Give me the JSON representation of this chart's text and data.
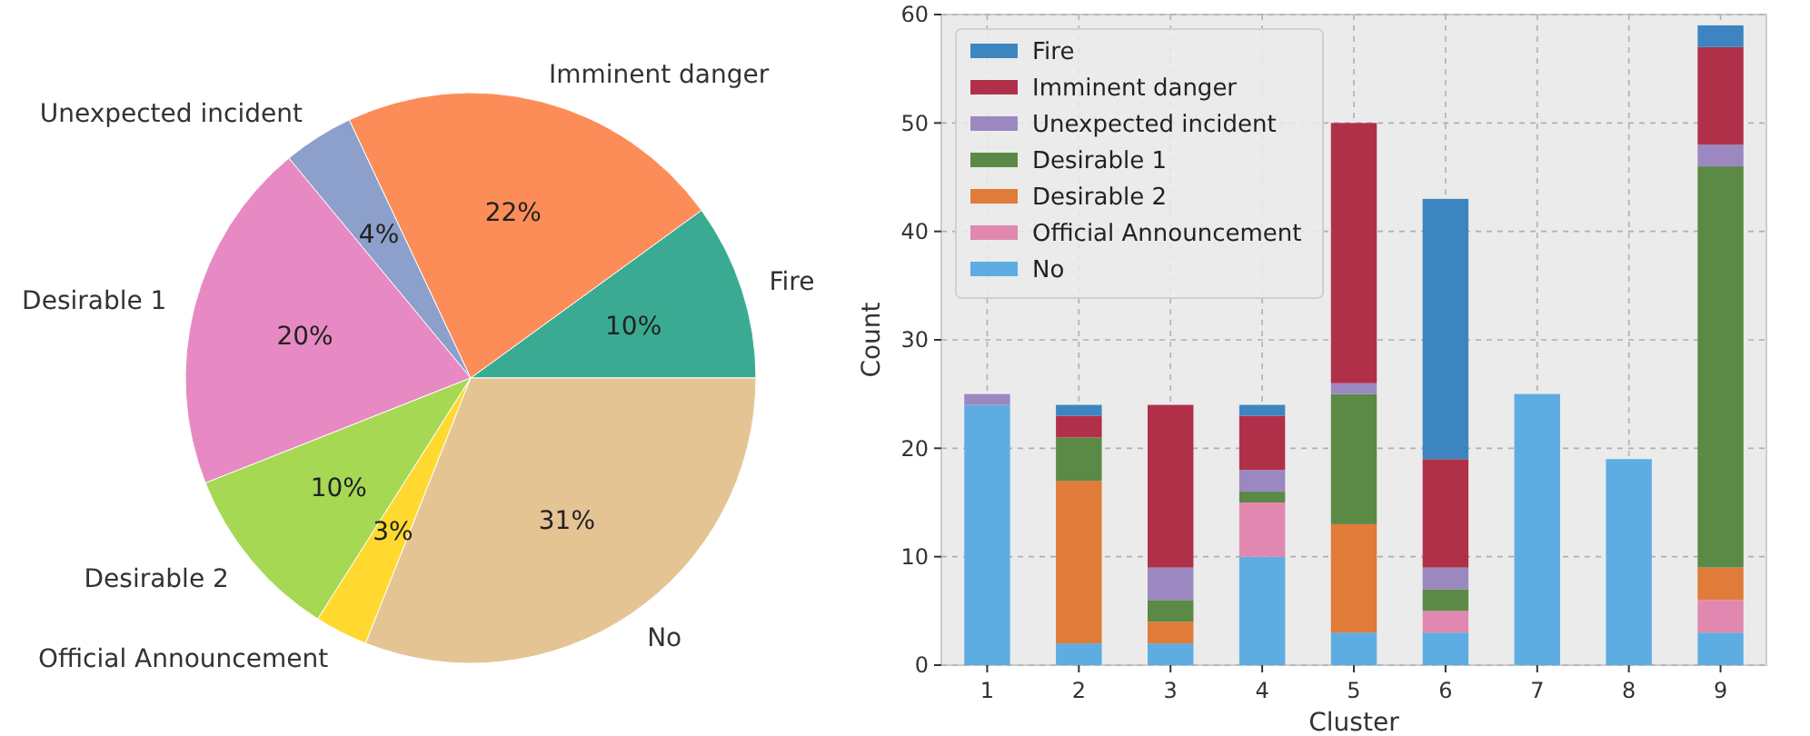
{
  "chart_data": [
    {
      "type": "pie",
      "categories": [
        "Fire",
        "Imminent danger",
        "Unexpected incident",
        "Desirable 1",
        "Desirable 2",
        "Official Announcement",
        "No"
      ],
      "values": [
        10,
        22,
        4,
        20,
        10,
        3,
        31
      ],
      "colors": [
        "#3aab92",
        "#fc8d59",
        "#8da0cb",
        "#e78ac3",
        "#a6d854",
        "#ffd92f",
        "#e5c494"
      ],
      "value_labels": [
        "10%",
        "22%",
        "4%",
        "20%",
        "10%",
        "3%",
        "31%"
      ]
    },
    {
      "type": "bar",
      "stacked": true,
      "xlabel": "Cluster",
      "ylabel": "Count",
      "categories": [
        "1",
        "2",
        "3",
        "4",
        "5",
        "6",
        "7",
        "8",
        "9"
      ],
      "ylim": [
        0,
        60
      ],
      "yticks": [
        0,
        10,
        20,
        30,
        40,
        50,
        60
      ],
      "grid": true,
      "legend": "top left",
      "series": [
        {
          "name": "No",
          "color": "#5dade2",
          "values": [
            24,
            2,
            2,
            10,
            3,
            3,
            25,
            19,
            3
          ]
        },
        {
          "name": "Official Announcement",
          "color": "#e088b0",
          "values": [
            0,
            0,
            0,
            5,
            0,
            2,
            0,
            0,
            3
          ]
        },
        {
          "name": "Desirable 2",
          "color": "#e07b39",
          "values": [
            0,
            15,
            2,
            0,
            10,
            0,
            0,
            0,
            3
          ]
        },
        {
          "name": "Desirable 1",
          "color": "#5a8a45",
          "values": [
            0,
            4,
            2,
            1,
            12,
            2,
            0,
            0,
            37
          ]
        },
        {
          "name": "Unexpected incident",
          "color": "#9b88c0",
          "values": [
            1,
            0,
            3,
            2,
            1,
            2,
            0,
            0,
            2
          ]
        },
        {
          "name": "Imminent danger",
          "color": "#b0304a",
          "values": [
            0,
            2,
            15,
            5,
            24,
            10,
            0,
            0,
            9
          ]
        },
        {
          "name": "Fire",
          "color": "#3d85c0",
          "values": [
            0,
            1,
            0,
            1,
            0,
            24,
            0,
            0,
            2
          ]
        }
      ]
    }
  ]
}
